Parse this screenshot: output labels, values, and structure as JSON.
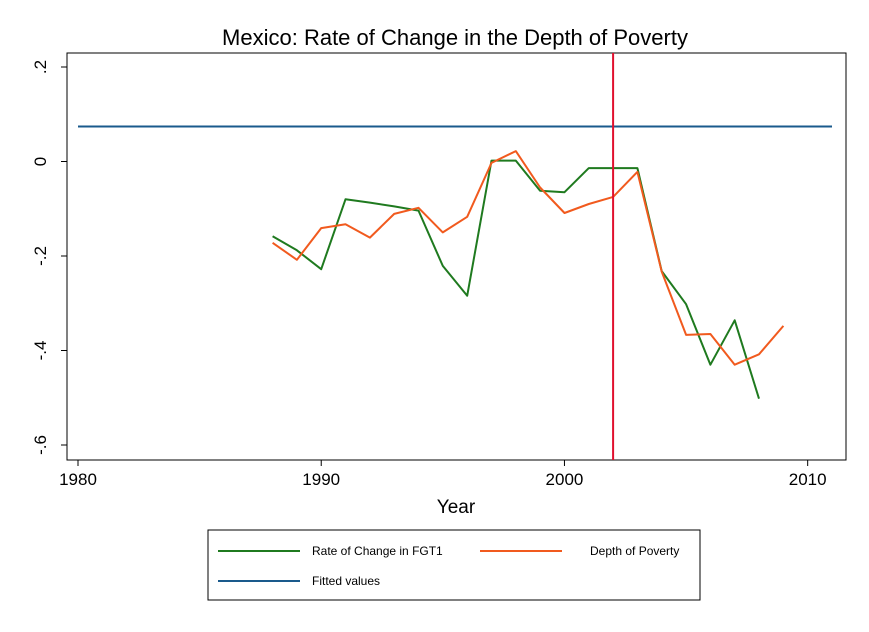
{
  "chart_data": {
    "type": "line",
    "title": "Mexico: Rate of Change in the Depth of Poverty",
    "xlabel": "Year",
    "ylabel": "",
    "xlim": [
      1980,
      2011
    ],
    "ylim": [
      -0.6,
      0.2
    ],
    "x_ticks": [
      1980,
      1990,
      2000,
      2010
    ],
    "y_ticks": [
      {
        "value": 0.2,
        "label": ".2"
      },
      {
        "value": 0,
        "label": "0"
      },
      {
        "value": -0.2,
        "label": "-.2"
      },
      {
        "value": -0.4,
        "label": "-.4"
      },
      {
        "value": -0.6,
        "label": "-.6"
      }
    ],
    "grid": false,
    "legend_position": "bottom",
    "series": [
      {
        "name": "Rate of Change in FGT1",
        "color": "#1f7a1f",
        "x": [
          1988,
          1989,
          1990,
          1991,
          1992,
          1993,
          1994,
          1995,
          1996,
          1997,
          1998,
          1999,
          2000,
          2001,
          2002,
          2003,
          2004,
          2005,
          2006,
          2007,
          2008
        ],
        "y": [
          -0.158,
          -0.188,
          -0.228,
          -0.08,
          -0.087,
          -0.095,
          -0.104,
          -0.221,
          -0.284,
          0.002,
          0.002,
          -0.062,
          -0.065,
          -0.014,
          -0.014,
          -0.014,
          -0.232,
          -0.302,
          -0.43,
          -0.336,
          -0.502
        ]
      },
      {
        "name": "Depth of Poverty",
        "color": "#f15a1e",
        "x": [
          1988,
          1989,
          1990,
          1991,
          1992,
          1993,
          1994,
          1995,
          1996,
          1997,
          1998,
          1999,
          2000,
          2001,
          2002,
          2003,
          2004,
          2005,
          2006,
          2007,
          2008,
          2009
        ],
        "y": [
          -0.172,
          -0.208,
          -0.141,
          -0.133,
          -0.161,
          -0.111,
          -0.098,
          -0.15,
          -0.117,
          -0.003,
          0.022,
          -0.055,
          -0.109,
          -0.09,
          -0.075,
          -0.022,
          -0.233,
          -0.367,
          -0.365,
          -0.43,
          -0.408,
          -0.348
        ]
      },
      {
        "name": "Fitted values",
        "color": "#1a5a8c",
        "x": [
          1980,
          2011
        ],
        "y": [
          0.074,
          0.074
        ]
      }
    ],
    "reference_line": {
      "x": 2002,
      "color": "#e0102e"
    }
  }
}
